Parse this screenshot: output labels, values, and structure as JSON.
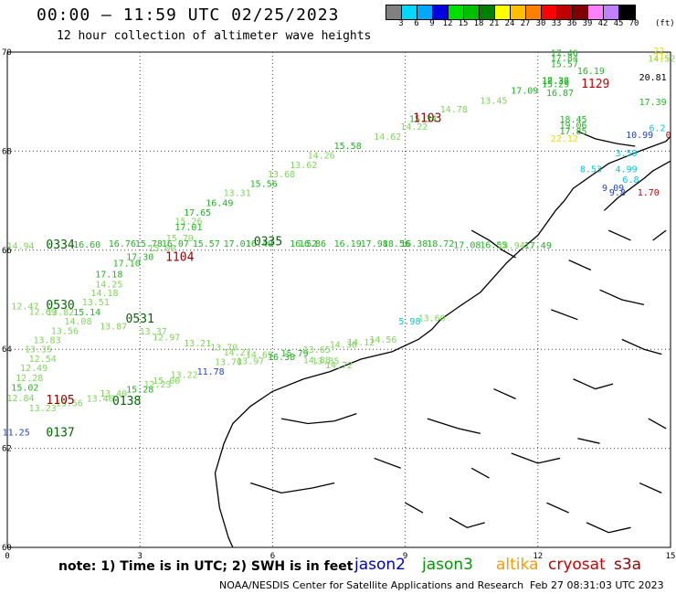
{
  "header": {
    "title": "00:00 – 11:59 UTC 02/25/2023",
    "subtitle": "12 hour collection of altimeter wave heights"
  },
  "colorbar": {
    "labels": [
      "3",
      "6",
      "9",
      "12",
      "15",
      "18",
      "21",
      "24",
      "27",
      "30",
      "33",
      "36",
      "39",
      "42",
      "45",
      "70"
    ],
    "colors": [
      "#808080",
      "#00d8ff",
      "#00a8ff",
      "#0000e0",
      "#00e000",
      "#00c000",
      "#008000",
      "#ffff00",
      "#ffc000",
      "#ff8000",
      "#ff0000",
      "#c00000",
      "#800000",
      "#ff80ff",
      "#c080ff",
      "#000000"
    ],
    "unit": "(ft)"
  },
  "axes": {
    "x_ticks": [
      "0",
      "3",
      "6",
      "9",
      "12",
      "15"
    ],
    "y_ticks": [
      "70",
      "68",
      "66",
      "64",
      "62",
      "60"
    ]
  },
  "footer": {
    "note": "note:  1) Time is in UTC;  2) SWH is in feet",
    "satellites": [
      {
        "name": "jason2",
        "color": "#0000cc"
      },
      {
        "name": "jason3",
        "color": "#009900"
      },
      {
        "name": "altika",
        "color": "#ff9900"
      },
      {
        "name": "cryosat",
        "color": "#cc0000"
      },
      {
        "name": "s3a",
        "color": "#990000"
      }
    ],
    "credit": "NOAA/NESDIS Center for Satellite Applications and Research",
    "timestamp": "Feb 27 08:31:03 UTC 2023"
  },
  "track_a": [
    {
      "label": "14.52",
      "lon": 14.8,
      "lat": 69.81,
      "color": "#7ed65a"
    },
    {
      "label": "16.19",
      "lon": 13.2,
      "lat": 69.56,
      "color": "#22b422"
    },
    {
      "label": "17.36",
      "lon": 12.4,
      "lat": 69.36,
      "color": "#22b422"
    },
    {
      "label": "17.09",
      "lon": 11.7,
      "lat": 69.16,
      "color": "#22b422"
    },
    {
      "label": "13.45",
      "lon": 11.0,
      "lat": 68.96,
      "color": "#7ed65a"
    },
    {
      "label": "14.78",
      "lon": 10.1,
      "lat": 68.78,
      "color": "#7ed65a"
    },
    {
      "label": "15.34",
      "lon": 9.4,
      "lat": 68.59,
      "color": "#22b422"
    },
    {
      "label": "14.22",
      "lon": 9.2,
      "lat": 68.43,
      "color": "#7ed65a"
    },
    {
      "label": "14.62",
      "lon": 8.6,
      "lat": 68.23,
      "color": "#7ed65a"
    },
    {
      "label": "15.58",
      "lon": 7.7,
      "lat": 68.04,
      "color": "#22b422"
    },
    {
      "label": "14.26",
      "lon": 7.1,
      "lat": 67.85,
      "color": "#7ed65a"
    },
    {
      "label": "13.62",
      "lon": 6.7,
      "lat": 67.66,
      "color": "#7ed65a"
    },
    {
      "label": "13.68",
      "lon": 6.2,
      "lat": 67.47,
      "color": "#7ed65a"
    },
    {
      "label": "15.56",
      "lon": 5.8,
      "lat": 67.28,
      "color": "#22b422"
    },
    {
      "label": "13.31",
      "lon": 5.2,
      "lat": 67.09,
      "color": "#7ed65a"
    },
    {
      "label": "16.49",
      "lon": 4.8,
      "lat": 66.89,
      "color": "#22b422"
    },
    {
      "label": "17.65",
      "lon": 4.3,
      "lat": 66.7,
      "color": "#22b422"
    },
    {
      "label": "15.26",
      "lon": 4.1,
      "lat": 66.52,
      "color": "#7ed65a"
    },
    {
      "label": "17.01",
      "lon": 4.1,
      "lat": 66.4,
      "color": "#22b422"
    },
    {
      "label": "15.70",
      "lon": 3.9,
      "lat": 66.18,
      "color": "#7ed65a"
    },
    {
      "label": "15.00",
      "lon": 3.5,
      "lat": 65.98,
      "color": "#7ed65a"
    },
    {
      "label": "17.30",
      "lon": 3.0,
      "lat": 65.8,
      "color": "#22b422"
    },
    {
      "label": "17.10",
      "lon": 2.7,
      "lat": 65.67,
      "color": "#22b422"
    },
    {
      "label": "17.18",
      "lon": 2.3,
      "lat": 65.45,
      "color": "#22b422"
    },
    {
      "label": "14.25",
      "lon": 2.3,
      "lat": 65.25,
      "color": "#7ed65a"
    },
    {
      "label": "14.18",
      "lon": 2.2,
      "lat": 65.07,
      "color": "#7ed65a"
    },
    {
      "label": "13.51",
      "lon": 2.0,
      "lat": 64.89,
      "color": "#7ed65a"
    },
    {
      "label": "15.14",
      "lon": 1.8,
      "lat": 64.69,
      "color": "#22b422"
    },
    {
      "label": "14.08",
      "lon": 1.6,
      "lat": 64.5,
      "color": "#7ed65a"
    },
    {
      "label": "13.56",
      "lon": 1.3,
      "lat": 64.31,
      "color": "#7ed65a"
    },
    {
      "label": "13.83",
      "lon": 0.9,
      "lat": 64.12,
      "color": "#7ed65a"
    },
    {
      "label": "13.35",
      "lon": 0.7,
      "lat": 63.94,
      "color": "#7ed65a"
    },
    {
      "label": "12.54",
      "lon": 0.8,
      "lat": 63.75,
      "color": "#7ed65a"
    },
    {
      "label": "12.49",
      "lon": 0.6,
      "lat": 63.56,
      "color": "#7ed65a"
    },
    {
      "label": "12.28",
      "lon": 0.5,
      "lat": 63.36,
      "color": "#7ed65a"
    },
    {
      "label": "15.02",
      "lon": 0.4,
      "lat": 63.16,
      "color": "#22b422"
    },
    {
      "label": "12.84",
      "lon": 0.3,
      "lat": 62.95,
      "color": "#7ed65a"
    },
    {
      "label": "11.25",
      "lon": 0.2,
      "lat": 62.26,
      "color": "#2244cc"
    }
  ],
  "track_b": [
    {
      "label": "14.94",
      "lon": 0.3,
      "lat": 66.02,
      "color": "#7ed65a"
    },
    {
      "label": "16.60",
      "lon": 1.8,
      "lat": 66.05,
      "color": "#22b422"
    },
    {
      "label": "16.76",
      "lon": 2.6,
      "lat": 66.07,
      "color": "#22b422"
    },
    {
      "label": "15.78",
      "lon": 3.2,
      "lat": 66.07,
      "color": "#22b422"
    },
    {
      "label": "16.07",
      "lon": 3.8,
      "lat": 66.07,
      "color": "#22b422"
    },
    {
      "label": "15.57",
      "lon": 4.5,
      "lat": 66.07,
      "color": "#22b422"
    },
    {
      "label": "17.01",
      "lon": 5.2,
      "lat": 66.07,
      "color": "#22b422"
    },
    {
      "label": "16.40",
      "lon": 5.7,
      "lat": 66.07,
      "color": "#22b422"
    },
    {
      "label": "16.52",
      "lon": 6.7,
      "lat": 66.07,
      "color": "#22b422"
    },
    {
      "label": "16.86",
      "lon": 6.9,
      "lat": 66.07,
      "color": "#22b422"
    },
    {
      "label": "16.19",
      "lon": 7.7,
      "lat": 66.07,
      "color": "#22b422"
    },
    {
      "label": "17.98",
      "lon": 8.3,
      "lat": 66.07,
      "color": "#22b422"
    },
    {
      "label": "18.56",
      "lon": 8.8,
      "lat": 66.07,
      "color": "#22b422"
    },
    {
      "label": "16.38",
      "lon": 9.2,
      "lat": 66.07,
      "color": "#22b422"
    },
    {
      "label": "18.72",
      "lon": 9.8,
      "lat": 66.07,
      "color": "#22b422"
    },
    {
      "label": "17.08",
      "lon": 10.4,
      "lat": 66.04,
      "color": "#22b422"
    },
    {
      "label": "16.55",
      "lon": 11.0,
      "lat": 66.04,
      "color": "#22b422"
    },
    {
      "label": "14.94",
      "lon": 11.4,
      "lat": 66.03,
      "color": "#7ed65a"
    },
    {
      "label": "17.49",
      "lon": 12.0,
      "lat": 66.03,
      "color": "#22b422"
    }
  ],
  "track_c": [
    {
      "label": "12.47",
      "lon": 0.4,
      "lat": 64.81,
      "color": "#7ed65a"
    },
    {
      "label": "12.69",
      "lon": 0.8,
      "lat": 64.7,
      "color": "#7ed65a"
    },
    {
      "label": "13.82",
      "lon": 1.2,
      "lat": 64.69,
      "color": "#7ed65a"
    },
    {
      "label": "13.87",
      "lon": 2.4,
      "lat": 64.4,
      "color": "#7ed65a"
    },
    {
      "label": "12.97",
      "lon": 3.6,
      "lat": 64.18,
      "color": "#7ed65a"
    },
    {
      "label": "13.37",
      "lon": 3.3,
      "lat": 64.3,
      "color": "#7ed65a"
    },
    {
      "label": "13.21",
      "lon": 4.3,
      "lat": 64.06,
      "color": "#7ed65a"
    },
    {
      "label": "13.70",
      "lon": 4.9,
      "lat": 63.98,
      "color": "#7ed65a"
    },
    {
      "label": "14.27",
      "lon": 5.2,
      "lat": 63.87,
      "color": "#7ed65a"
    },
    {
      "label": "14.69",
      "lon": 5.7,
      "lat": 63.83,
      "color": "#7ed65a"
    },
    {
      "label": "15.79",
      "lon": 6.5,
      "lat": 63.86,
      "color": "#22b422"
    },
    {
      "label": "13.65",
      "lon": 7.0,
      "lat": 63.93,
      "color": "#7ed65a"
    },
    {
      "label": "14.30",
      "lon": 7.6,
      "lat": 64.03,
      "color": "#7ed65a"
    },
    {
      "label": "14.12",
      "lon": 8.0,
      "lat": 64.08,
      "color": "#7ed65a"
    },
    {
      "label": "14.56",
      "lon": 8.5,
      "lat": 64.13,
      "color": "#7ed65a"
    },
    {
      "label": "5.98",
      "lon": 9.1,
      "lat": 64.5,
      "color": "#00c8e0"
    },
    {
      "label": "13.60",
      "lon": 9.6,
      "lat": 64.57,
      "color": "#7ed65a"
    }
  ],
  "track_d": [
    {
      "label": "13.23",
      "lon": 0.8,
      "lat": 62.75,
      "color": "#7ed65a"
    },
    {
      "label": "13.56",
      "lon": 1.4,
      "lat": 62.85,
      "color": "#7ed65a"
    },
    {
      "label": "13.46",
      "lon": 2.1,
      "lat": 62.94,
      "color": "#7ed65a"
    },
    {
      "label": "13.40",
      "lon": 2.4,
      "lat": 63.04,
      "color": "#7ed65a"
    },
    {
      "label": "15.28",
      "lon": 3.0,
      "lat": 63.13,
      "color": "#22b422"
    },
    {
      "label": "12.23",
      "lon": 3.4,
      "lat": 63.23,
      "color": "#7ed65a"
    },
    {
      "label": "15.00",
      "lon": 3.6,
      "lat": 63.3,
      "color": "#7ed65a"
    },
    {
      "label": "13.22",
      "lon": 4.0,
      "lat": 63.42,
      "color": "#7ed65a"
    },
    {
      "label": "11.78",
      "lon": 4.6,
      "lat": 63.49,
      "color": "#2244cc"
    },
    {
      "label": "13.70",
      "lon": 5.0,
      "lat": 63.68,
      "color": "#7ed65a"
    },
    {
      "label": "13.97",
      "lon": 5.5,
      "lat": 63.7,
      "color": "#7ed65a"
    },
    {
      "label": "16.38",
      "lon": 6.2,
      "lat": 63.78,
      "color": "#22b422"
    },
    {
      "label": "14.88",
      "lon": 7.0,
      "lat": 63.72,
      "color": "#7ed65a"
    },
    {
      "label": "13.35",
      "lon": 7.2,
      "lat": 63.7,
      "color": "#7ed65a"
    },
    {
      "label": "14.72",
      "lon": 7.5,
      "lat": 63.62,
      "color": "#7ed65a"
    }
  ],
  "track_e": [
    {
      "label": "17.46",
      "lon": 12.6,
      "lat": 69.92,
      "color": "#22b422"
    },
    {
      "label": "17.84",
      "lon": 12.6,
      "lat": 69.82,
      "color": "#22b422"
    },
    {
      "label": "15.57",
      "lon": 12.6,
      "lat": 69.7,
      "color": "#22b422"
    },
    {
      "label": "18.37",
      "lon": 12.4,
      "lat": 69.35,
      "color": "#22b422"
    },
    {
      "label": "15.29",
      "lon": 12.4,
      "lat": 69.29,
      "color": "#22b422"
    },
    {
      "label": "16.87",
      "lon": 12.5,
      "lat": 69.11,
      "color": "#22b422"
    },
    {
      "label": "18.45",
      "lon": 12.8,
      "lat": 68.58,
      "color": "#22b422"
    },
    {
      "label": "19.06",
      "lon": 12.8,
      "lat": 68.46,
      "color": "#22b422"
    },
    {
      "label": "17.85",
      "lon": 12.8,
      "lat": 68.34,
      "color": "#22b422"
    },
    {
      "label": "22.12",
      "lon": 12.6,
      "lat": 68.19,
      "color": "#e0e000"
    },
    {
      "label": "17.39",
      "lon": 14.6,
      "lat": 68.93,
      "color": "#22b422"
    },
    {
      "label": "20.81",
      "lon": 14.6,
      "lat": 69.43,
      "color": "#000000"
    },
    {
      "label": "22.",
      "lon": 14.8,
      "lat": 69.96,
      "color": "#e0e000"
    },
    {
      "label": "21.",
      "lon": 14.8,
      "lat": 69.85,
      "color": "#e0e000"
    },
    {
      "label": "6.2",
      "lon": 14.7,
      "lat": 68.4,
      "color": "#00c8e0"
    },
    {
      "label": "10.99",
      "lon": 14.3,
      "lat": 68.27,
      "color": "#2244cc"
    },
    {
      "label": "0",
      "lon": 14.95,
      "lat": 68.27,
      "color": "#cc0000"
    },
    {
      "label": "3.59",
      "lon": 14.0,
      "lat": 67.9,
      "color": "#00c8e0"
    },
    {
      "label": "8.53",
      "lon": 13.2,
      "lat": 67.57,
      "color": "#00c8e0"
    },
    {
      "label": "4.99",
      "lon": 14.0,
      "lat": 67.57,
      "color": "#00c8e0"
    },
    {
      "label": "6.8",
      "lon": 14.1,
      "lat": 67.36,
      "color": "#00c8e0"
    },
    {
      "label": "9.09",
      "lon": 13.7,
      "lat": 67.2,
      "color": "#2244cc"
    },
    {
      "label": "9.8",
      "lon": 13.8,
      "lat": 67.1,
      "color": "#2244cc"
    },
    {
      "label": "1.70",
      "lon": 14.5,
      "lat": 67.1,
      "color": "#cc0000"
    }
  ],
  "time_labels": [
    {
      "label": "1103",
      "lon": 9.5,
      "lat": 68.59,
      "color": "#990000"
    },
    {
      "label": "1129",
      "lon": 13.3,
      "lat": 69.28,
      "color": "#cc0000"
    },
    {
      "label": "1104",
      "lon": 3.9,
      "lat": 65.78,
      "color": "#990000"
    },
    {
      "label": "0334",
      "lon": 1.2,
      "lat": 66.03,
      "color": "#006600"
    },
    {
      "label": "0335",
      "lon": 5.9,
      "lat": 66.1,
      "color": "#006600"
    },
    {
      "label": "0530",
      "lon": 1.2,
      "lat": 64.82,
      "color": "#006600"
    },
    {
      "label": "0531",
      "lon": 3.0,
      "lat": 64.54,
      "color": "#006600"
    },
    {
      "label": "1105",
      "lon": 1.2,
      "lat": 62.9,
      "color": "#990000"
    },
    {
      "label": "0138",
      "lon": 2.7,
      "lat": 62.88,
      "color": "#006600"
    },
    {
      "label": "0137",
      "lon": 1.2,
      "lat": 62.24,
      "color": "#006600"
    }
  ],
  "coast_segments": [
    [
      [
        15.0,
        68.3
      ],
      [
        14.9,
        68.2
      ],
      [
        14.3,
        68.0
      ],
      [
        13.6,
        67.75
      ],
      [
        13.2,
        67.5
      ],
      [
        12.8,
        67.25
      ],
      [
        12.6,
        67.0
      ],
      [
        12.4,
        66.8
      ],
      [
        12.2,
        66.55
      ],
      [
        12.0,
        66.3
      ],
      [
        11.6,
        66.0
      ],
      [
        11.3,
        65.75
      ],
      [
        11.0,
        65.45
      ],
      [
        10.7,
        65.15
      ],
      [
        10.2,
        64.85
      ],
      [
        9.8,
        64.6
      ],
      [
        9.6,
        64.4
      ],
      [
        9.3,
        64.2
      ],
      [
        8.7,
        63.95
      ],
      [
        8.0,
        63.8
      ],
      [
        7.3,
        63.55
      ],
      [
        6.7,
        63.4
      ],
      [
        6.0,
        63.15
      ],
      [
        5.5,
        62.85
      ],
      [
        5.1,
        62.5
      ],
      [
        4.9,
        62.1
      ],
      [
        4.7,
        61.5
      ],
      [
        4.8,
        60.8
      ],
      [
        5.0,
        60.2
      ],
      [
        5.1,
        60.0
      ]
    ],
    [
      [
        15.0,
        67.8
      ],
      [
        14.6,
        67.6
      ],
      [
        14.4,
        67.45
      ],
      [
        14.1,
        67.25
      ],
      [
        13.8,
        67.05
      ],
      [
        13.5,
        66.8
      ]
    ],
    [
      [
        12.9,
        68.4
      ],
      [
        13.3,
        68.25
      ],
      [
        13.8,
        68.15
      ],
      [
        14.2,
        68.1
      ]
    ],
    [
      [
        10.5,
        66.4
      ],
      [
        10.9,
        66.2
      ],
      [
        11.2,
        66.0
      ],
      [
        11.5,
        65.85
      ]
    ],
    [
      [
        6.2,
        62.6
      ],
      [
        6.8,
        62.5
      ],
      [
        7.4,
        62.55
      ],
      [
        7.9,
        62.7
      ]
    ],
    [
      [
        5.5,
        61.3
      ],
      [
        6.2,
        61.1
      ],
      [
        6.9,
        61.2
      ],
      [
        7.4,
        61.3
      ]
    ],
    [
      [
        9.5,
        62.6
      ],
      [
        10.2,
        62.4
      ],
      [
        10.7,
        62.3
      ]
    ],
    [
      [
        11.4,
        61.9
      ],
      [
        12.0,
        61.7
      ],
      [
        12.5,
        61.8
      ]
    ],
    [
      [
        8.3,
        61.8
      ],
      [
        8.9,
        61.6
      ]
    ],
    [
      [
        12.8,
        63.4
      ],
      [
        13.3,
        63.2
      ],
      [
        13.7,
        63.3
      ]
    ],
    [
      [
        13.9,
        64.2
      ],
      [
        14.4,
        64.0
      ],
      [
        14.8,
        63.9
      ]
    ],
    [
      [
        10.0,
        60.6
      ],
      [
        10.4,
        60.4
      ],
      [
        10.8,
        60.5
      ]
    ],
    [
      [
        12.2,
        60.9
      ],
      [
        12.7,
        60.7
      ]
    ],
    [
      [
        13.1,
        60.5
      ],
      [
        13.6,
        60.3
      ],
      [
        14.1,
        60.4
      ]
    ],
    [
      [
        14.3,
        61.3
      ],
      [
        14.8,
        61.1
      ]
    ],
    [
      [
        12.3,
        64.8
      ],
      [
        12.9,
        64.6
      ]
    ],
    [
      [
        13.4,
        65.2
      ],
      [
        13.9,
        65.0
      ],
      [
        14.4,
        64.9
      ]
    ],
    [
      [
        12.7,
        65.8
      ],
      [
        13.2,
        65.6
      ]
    ],
    [
      [
        14.6,
        66.2
      ],
      [
        14.9,
        66.4
      ]
    ],
    [
      [
        13.6,
        66.4
      ],
      [
        14.1,
        66.2
      ]
    ],
    [
      [
        12.9,
        62.2
      ],
      [
        13.4,
        62.1
      ]
    ],
    [
      [
        14.5,
        62.6
      ],
      [
        14.9,
        62.4
      ]
    ],
    [
      [
        11.0,
        63.2
      ],
      [
        11.5,
        63.0
      ]
    ],
    [
      [
        10.5,
        61.6
      ],
      [
        10.9,
        61.4
      ]
    ],
    [
      [
        9.0,
        60.9
      ],
      [
        9.4,
        60.7
      ]
    ]
  ]
}
